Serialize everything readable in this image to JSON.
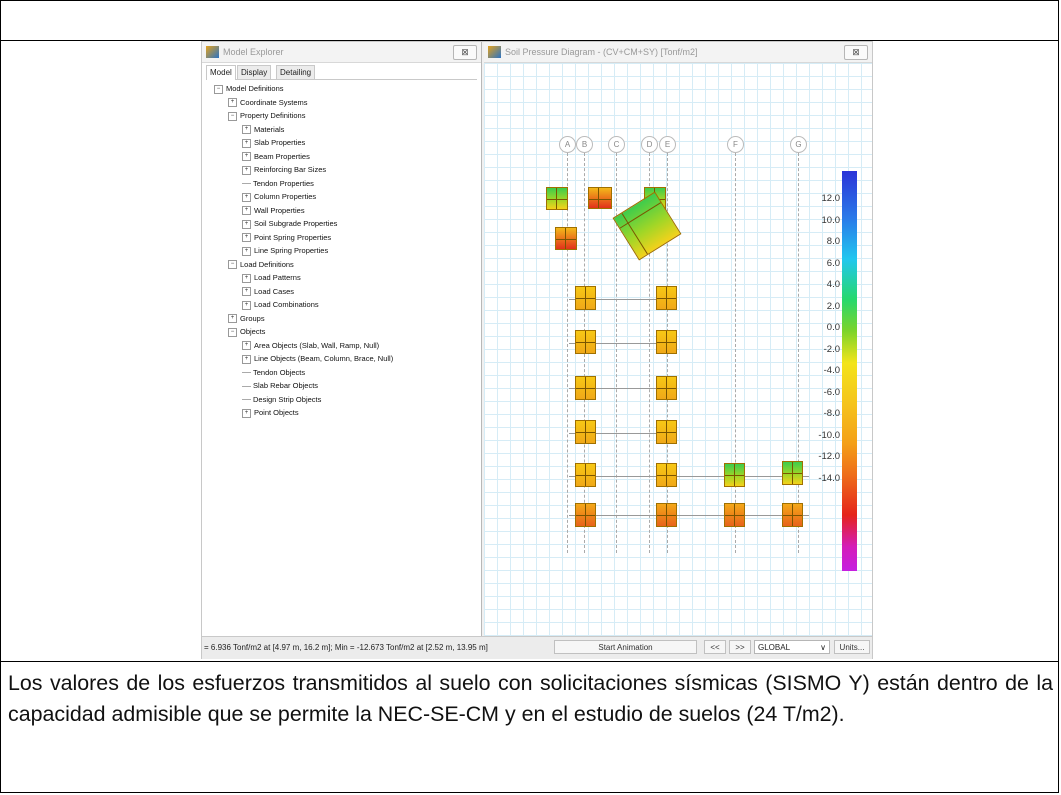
{
  "explorer": {
    "title": "Model Explorer",
    "close": "⊠",
    "tabs": [
      "Model",
      "Display",
      "Detailing"
    ],
    "tree": [
      {
        "label": "Model Definitions",
        "level": 0,
        "exp": "−"
      },
      {
        "label": "Coordinate Systems",
        "level": 1,
        "exp": "+"
      },
      {
        "label": "Property Definitions",
        "level": 1,
        "exp": "−"
      },
      {
        "label": "Materials",
        "level": 2,
        "exp": "+"
      },
      {
        "label": "Slab Properties",
        "level": 2,
        "exp": "+"
      },
      {
        "label": "Beam Properties",
        "level": 2,
        "exp": "+"
      },
      {
        "label": "Reinforcing Bar Sizes",
        "level": 2,
        "exp": "+"
      },
      {
        "label": "Tendon Properties",
        "level": 2,
        "exp": ""
      },
      {
        "label": "Column Properties",
        "level": 2,
        "exp": "+"
      },
      {
        "label": "Wall Properties",
        "level": 2,
        "exp": "+"
      },
      {
        "label": "Soil Subgrade Properties",
        "level": 2,
        "exp": "+"
      },
      {
        "label": "Point Spring Properties",
        "level": 2,
        "exp": "+"
      },
      {
        "label": "Line Spring Properties",
        "level": 2,
        "exp": "+"
      },
      {
        "label": "Load Definitions",
        "level": 1,
        "exp": "−"
      },
      {
        "label": "Load Patterns",
        "level": 2,
        "exp": "+"
      },
      {
        "label": "Load Cases",
        "level": 2,
        "exp": "+"
      },
      {
        "label": "Load Combinations",
        "level": 2,
        "exp": "+"
      },
      {
        "label": "Groups",
        "level": 1,
        "exp": "+"
      },
      {
        "label": "Objects",
        "level": 1,
        "exp": "−"
      },
      {
        "label": "Area Objects (Slab, Wall, Ramp, Null)",
        "level": 2,
        "exp": "+"
      },
      {
        "label": "Line Objects (Beam, Column, Brace, Null)",
        "level": 2,
        "exp": "+"
      },
      {
        "label": "Tendon Objects",
        "level": 2,
        "exp": ""
      },
      {
        "label": "Slab Rebar Objects",
        "level": 2,
        "exp": ""
      },
      {
        "label": "Design Strip Objects",
        "level": 2,
        "exp": ""
      },
      {
        "label": "Point Objects",
        "level": 2,
        "exp": "+"
      }
    ]
  },
  "diagram": {
    "title": "Soil Pressure Diagram - (CV+CM+SY)  [Tonf/m2]",
    "close": "⊠",
    "grid_labels": [
      "A",
      "B",
      "C",
      "D",
      "E",
      "F",
      "G"
    ],
    "colorbar_labels": [
      "12.0",
      "10.0",
      "8.0",
      "6.0",
      "4.0",
      "2.0",
      "0.0",
      "-2.0",
      "-4.0",
      "-6.0",
      "-8.0",
      "-10.0",
      "-12.0",
      "-14.0"
    ],
    "colorbar_range": [
      -14,
      14
    ]
  },
  "statusbar": {
    "text": "= 6.936 Tonf/m2 at [4.97 m, 16.2 m];  Min = -12.673 Tonf/m2 at [2.52 m, 13.95 m]",
    "animation_button": "Start Animation",
    "prev_button": "<<",
    "next_button": ">>",
    "coord_system": "GLOBAL",
    "units_button": "Units..."
  },
  "caption": "Los valores de los esfuerzos transmitidos al suelo con solicitaciones sísmicas (SISMO Y) están dentro de la capacidad admisible que se permite la NEC-SE-CM y en el estudio de suelos (24 T/m2)."
}
